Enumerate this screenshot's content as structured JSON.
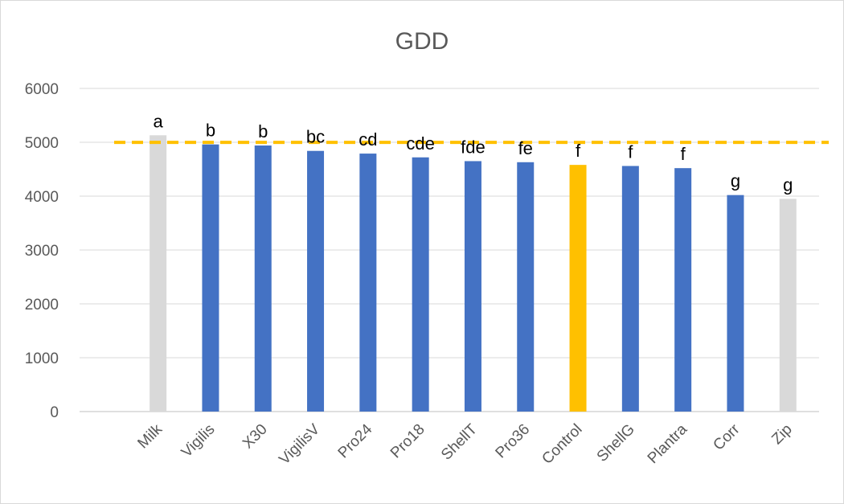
{
  "chart_data": {
    "type": "bar",
    "title": "GDD",
    "xlabel": "",
    "ylabel": "",
    "ylim": [
      0,
      6000
    ],
    "yticks": [
      0,
      1000,
      2000,
      3000,
      4000,
      5000,
      6000
    ],
    "grid": "horizontal",
    "legend": "none",
    "categories": [
      "Milk",
      "Vigilis",
      "X30",
      "VigilisV",
      "Pro24",
      "Pro18",
      "ShellT",
      "Pro36",
      "Control",
      "ShellG",
      "Plantra",
      "Corr",
      "Zip"
    ],
    "values": [
      5130,
      4960,
      4940,
      4840,
      4790,
      4720,
      4650,
      4630,
      4580,
      4560,
      4520,
      4020,
      3950
    ],
    "labels": [
      "a",
      "b",
      "b",
      "bc",
      "cd",
      "cde",
      "fde",
      "fe",
      "f",
      "f",
      "f",
      "g",
      "g"
    ],
    "bar_colors": [
      "#d9d9d9",
      "#4472c4",
      "#4472c4",
      "#4472c4",
      "#4472c4",
      "#4472c4",
      "#4472c4",
      "#4472c4",
      "#ffc000",
      "#4472c4",
      "#4472c4",
      "#4472c4",
      "#d9d9d9"
    ],
    "reference_line": {
      "value": 4580,
      "style": "dashed",
      "color": "#ffc000"
    },
    "colors": {
      "gridline": "#d9d9d9",
      "axis": "#bfbfbf",
      "text": "#595959"
    }
  }
}
